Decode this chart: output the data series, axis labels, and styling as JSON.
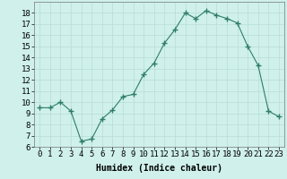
{
  "x": [
    0,
    1,
    2,
    3,
    4,
    5,
    6,
    7,
    8,
    9,
    10,
    11,
    12,
    13,
    14,
    15,
    16,
    17,
    18,
    19,
    20,
    21,
    22,
    23
  ],
  "y": [
    9.5,
    9.5,
    10.0,
    9.2,
    6.5,
    6.7,
    8.5,
    9.3,
    10.5,
    10.7,
    12.5,
    13.5,
    15.3,
    16.5,
    18.0,
    17.5,
    18.2,
    17.8,
    17.5,
    17.1,
    15.0,
    13.3,
    9.2,
    8.7
  ],
  "line_color": "#2e7d6b",
  "marker": "+",
  "marker_size": 4,
  "bg_color": "#cff0eb",
  "grid_color": "#b8ddd7",
  "xlabel": "Humidex (Indice chaleur)",
  "ylim": [
    6,
    19
  ],
  "xlim": [
    -0.5,
    23.5
  ],
  "yticks": [
    6,
    7,
    8,
    9,
    10,
    11,
    12,
    13,
    14,
    15,
    16,
    17,
    18
  ],
  "xticks": [
    0,
    1,
    2,
    3,
    4,
    5,
    6,
    7,
    8,
    9,
    10,
    11,
    12,
    13,
    14,
    15,
    16,
    17,
    18,
    19,
    20,
    21,
    22,
    23
  ],
  "xlabel_fontsize": 7,
  "tick_fontsize": 6.5
}
